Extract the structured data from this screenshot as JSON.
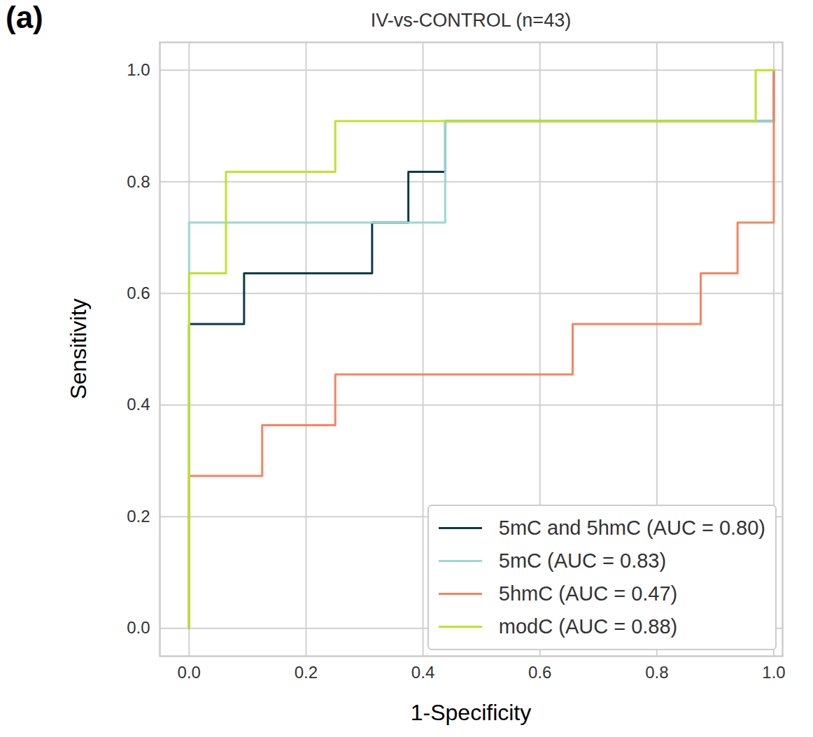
{
  "chart_data": {
    "type": "line",
    "panel_label": "(a)",
    "title": "IV-vs-CONTROL (n=43)",
    "x_label": "1-Specificity",
    "y_label": "Sensitivity",
    "xlim": [
      -0.05,
      1.015
    ],
    "ylim": [
      -0.05,
      1.05
    ],
    "xticks": [
      {
        "value": 0,
        "label": "0.0"
      },
      0.2,
      0.4,
      0.6,
      0.8,
      {
        "value": 1,
        "label": "1.0"
      }
    ],
    "yticks": [
      {
        "value": 0,
        "label": "0.0"
      },
      0.2,
      0.4,
      0.6,
      0.8,
      {
        "value": 1,
        "label": "1.0"
      }
    ],
    "grid": true,
    "legend": "lower right",
    "series": [
      {
        "name": "5mC and 5hmC (AUC = 0.80)",
        "color": "#0b3b48",
        "x": [
          0,
          0,
          0.094,
          0.094,
          0.313,
          0.313,
          0.375,
          0.375,
          0.438,
          0.438,
          1.0,
          1.0
        ],
        "values": [
          0,
          0.545,
          0.545,
          0.636,
          0.636,
          0.727,
          0.727,
          0.818,
          0.818,
          0.909,
          0.909,
          1.0
        ]
      },
      {
        "name": "5mC (AUC = 0.83)",
        "color": "#98d8d6",
        "x": [
          0,
          0,
          0.438,
          0.438,
          1.0,
          1.0
        ],
        "values": [
          0,
          0.727,
          0.727,
          0.909,
          0.909,
          1.0
        ]
      },
      {
        "name": "5hmC (AUC = 0.47)",
        "color": "#f7845e",
        "x": [
          0,
          0,
          0.125,
          0.125,
          0.25,
          0.25,
          0.656,
          0.656,
          0.875,
          0.875,
          0.938,
          0.938,
          1.0,
          1.0
        ],
        "values": [
          0,
          0.273,
          0.273,
          0.364,
          0.364,
          0.455,
          0.455,
          0.545,
          0.545,
          0.636,
          0.636,
          0.727,
          0.727,
          1.0
        ]
      },
      {
        "name": "modC (AUC = 0.88)",
        "color": "#bfe22a",
        "x": [
          0,
          0,
          0.063,
          0.063,
          0.25,
          0.25,
          0.969,
          0.969,
          1.0
        ],
        "values": [
          0,
          0.636,
          0.636,
          0.818,
          0.818,
          0.909,
          0.909,
          1.0,
          1.0
        ]
      }
    ]
  }
}
